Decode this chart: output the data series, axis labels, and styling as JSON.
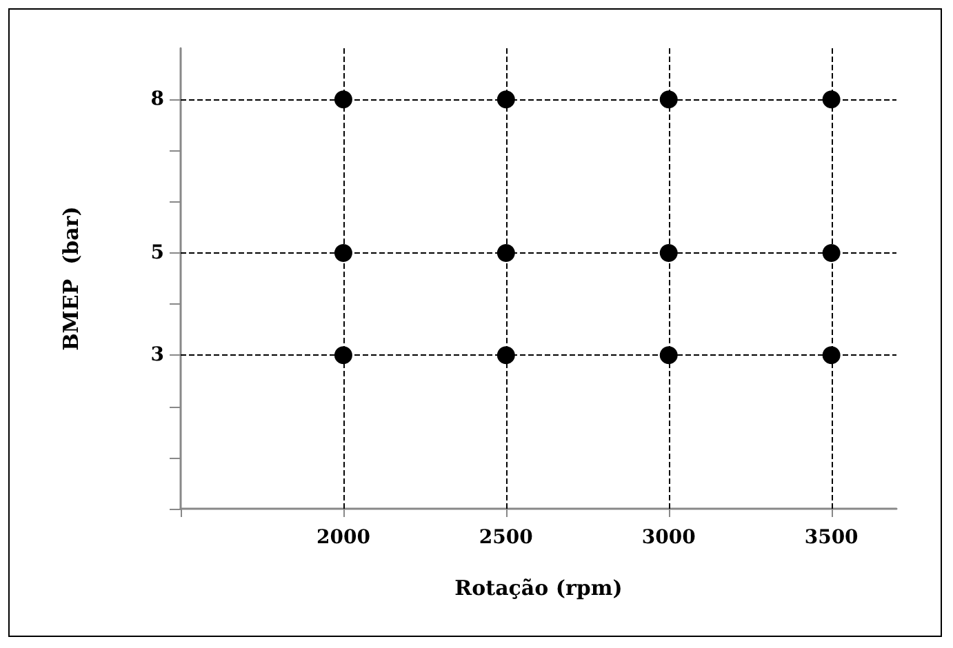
{
  "chart_data": {
    "type": "scatter",
    "xlabel": "Rotação (rpm)",
    "ylabel": "BMEP  (bar)",
    "x": [
      2000,
      2500,
      3000,
      3500,
      2000,
      2500,
      3000,
      3500,
      2000,
      2500,
      3000,
      3500
    ],
    "series": [
      {
        "color": "#000000",
        "values": [
          8,
          8,
          8,
          8,
          5,
          5,
          5,
          5,
          3,
          3,
          3,
          3
        ]
      }
    ],
    "xlim": [
      1500,
      3700
    ],
    "xticks": [
      {
        "value": 1500,
        "label": null
      },
      2000,
      2500,
      3000,
      3500
    ],
    "ylim": [
      0,
      9
    ],
    "yticks": [
      {
        "value": 0,
        "label": null
      },
      {
        "value": 1,
        "label": null
      },
      {
        "value": 2,
        "label": null
      },
      3,
      {
        "value": 4,
        "label": null
      },
      5,
      {
        "value": 6,
        "label": null
      },
      {
        "value": 7,
        "label": null
      },
      8
    ],
    "grid": true,
    "marker": "circle"
  }
}
